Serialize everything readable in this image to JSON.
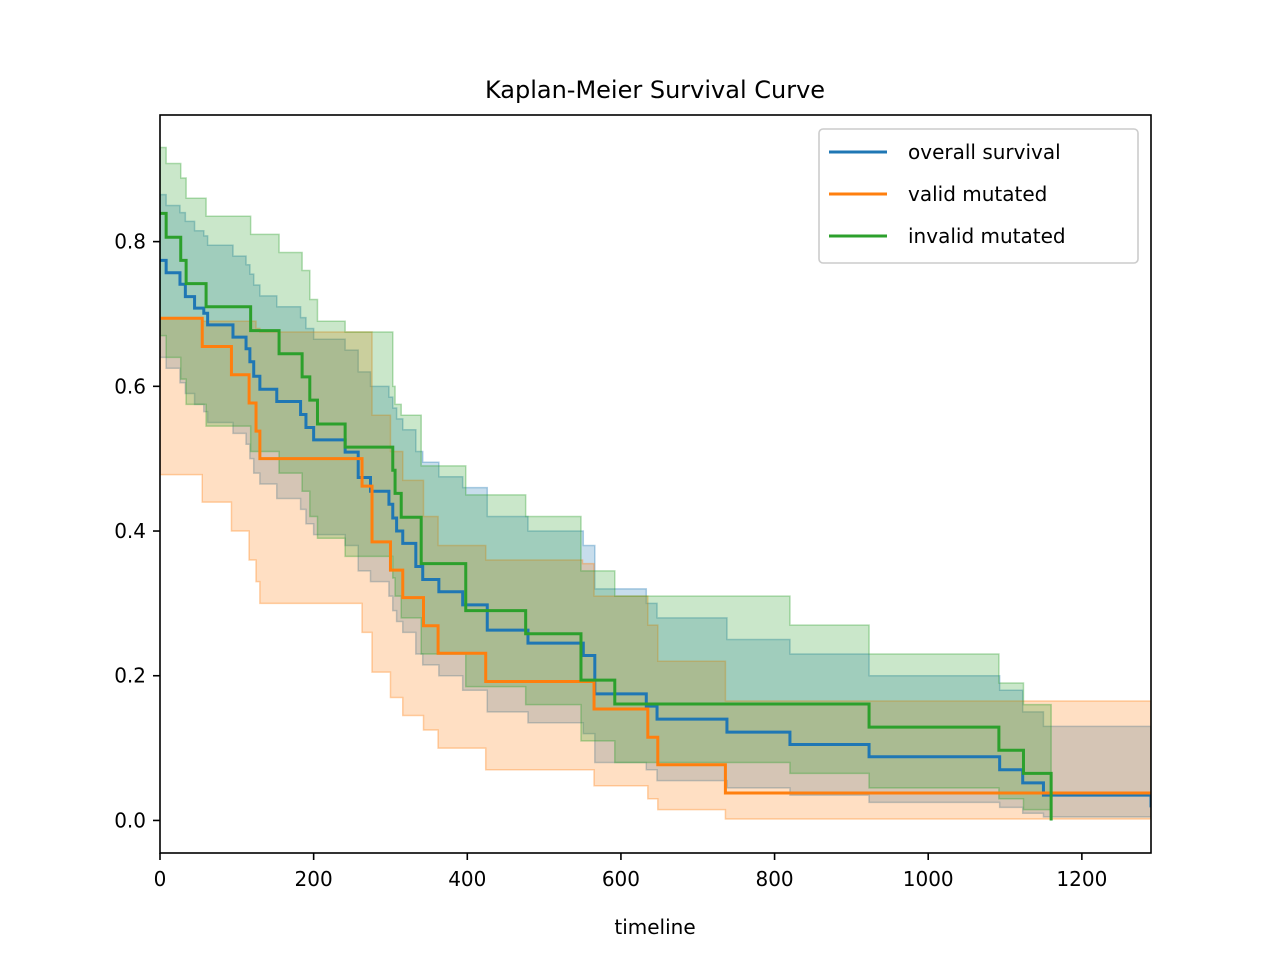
{
  "chart_data": {
    "type": "line",
    "title": "Kaplan-Meier Survival Curve",
    "xlabel": "timeline",
    "ylabel": "",
    "xlim": [
      0,
      1290
    ],
    "ylim": [
      -0.045,
      0.975
    ],
    "x_ticks": [
      0,
      200,
      400,
      600,
      800,
      1000,
      1200
    ],
    "y_ticks": [
      0.0,
      0.2,
      0.4,
      0.6,
      0.8
    ],
    "x_tick_labels": [
      "0",
      "200",
      "400",
      "600",
      "800",
      "1000",
      "1200"
    ],
    "y_tick_labels": [
      "0.0",
      "0.2",
      "0.4",
      "0.6",
      "0.8"
    ],
    "grid": false,
    "legend_position": "top-right",
    "series": [
      {
        "name": "overall survival",
        "color": "#1f77b4",
        "x": [
          0,
          8,
          26,
          33,
          45,
          57,
          62,
          95,
          112,
          117,
          122,
          130,
          152,
          183,
          190,
          200,
          241,
          258,
          274,
          298,
          303,
          308,
          316,
          333,
          342,
          363,
          394,
          426,
          479,
          551,
          566,
          633,
          647,
          738,
          820,
          923,
          1093,
          1123,
          1150,
          1290
        ],
        "y": [
          0.774,
          0.757,
          0.741,
          0.724,
          0.708,
          0.701,
          0.685,
          0.668,
          0.652,
          0.634,
          0.614,
          0.596,
          0.579,
          0.561,
          0.543,
          0.526,
          0.509,
          0.474,
          0.455,
          0.437,
          0.418,
          0.4,
          0.383,
          0.351,
          0.333,
          0.316,
          0.298,
          0.263,
          0.245,
          0.228,
          0.175,
          0.158,
          0.14,
          0.122,
          0.105,
          0.088,
          0.07,
          0.052,
          0.035,
          0.018
        ],
        "ci_upper": [
          0.865,
          0.85,
          0.84,
          0.828,
          0.815,
          0.808,
          0.795,
          0.78,
          0.768,
          0.755,
          0.74,
          0.725,
          0.71,
          0.695,
          0.68,
          0.665,
          0.65,
          0.62,
          0.6,
          0.585,
          0.57,
          0.555,
          0.54,
          0.51,
          0.495,
          0.475,
          0.46,
          0.42,
          0.4,
          0.38,
          0.32,
          0.3,
          0.28,
          0.25,
          0.23,
          0.2,
          0.18,
          0.15,
          0.13,
          0.08
        ],
        "ci_lower": [
          0.64,
          0.625,
          0.605,
          0.59,
          0.575,
          0.565,
          0.55,
          0.535,
          0.52,
          0.5,
          0.48,
          0.465,
          0.445,
          0.43,
          0.41,
          0.395,
          0.38,
          0.345,
          0.33,
          0.31,
          0.29,
          0.275,
          0.26,
          0.23,
          0.215,
          0.2,
          0.18,
          0.15,
          0.135,
          0.12,
          0.08,
          0.07,
          0.055,
          0.045,
          0.035,
          0.025,
          0.018,
          0.01,
          0.005,
          0.002
        ]
      },
      {
        "name": "valid mutated",
        "color": "#ff7f0e",
        "x": [
          0,
          55,
          93,
          116,
          125,
          130,
          263,
          276,
          300,
          316,
          343,
          362,
          424,
          550,
          565,
          635,
          648,
          736,
          1290
        ],
        "y": [
          0.694,
          0.655,
          0.616,
          0.577,
          0.538,
          0.5,
          0.462,
          0.385,
          0.346,
          0.308,
          0.269,
          0.231,
          0.192,
          0.192,
          0.154,
          0.115,
          0.077,
          0.038,
          0.038
        ],
        "ci_upper": [
          0.694,
          0.69,
          0.69,
          0.69,
          0.68,
          0.675,
          0.675,
          0.56,
          0.51,
          0.47,
          0.42,
          0.38,
          0.36,
          0.355,
          0.31,
          0.27,
          0.22,
          0.165,
          0.165
        ],
        "ci_lower": [
          0.478,
          0.44,
          0.4,
          0.36,
          0.33,
          0.3,
          0.26,
          0.205,
          0.17,
          0.145,
          0.125,
          0.1,
          0.07,
          0.07,
          0.048,
          0.03,
          0.015,
          0.002,
          0.0
        ]
      },
      {
        "name": "invalid mutated",
        "color": "#2ca02c",
        "x": [
          0,
          8,
          27,
          34,
          60,
          118,
          155,
          185,
          195,
          205,
          241,
          303,
          306,
          314,
          340,
          398,
          476,
          548,
          592,
          820,
          923,
          1092,
          1124,
          1160
        ],
        "y": [
          0.839,
          0.806,
          0.774,
          0.742,
          0.71,
          0.677,
          0.645,
          0.613,
          0.581,
          0.548,
          0.516,
          0.484,
          0.452,
          0.419,
          0.355,
          0.29,
          0.258,
          0.194,
          0.161,
          0.161,
          0.129,
          0.097,
          0.065,
          0.032
        ],
        "ci_upper": [
          0.93,
          0.908,
          0.888,
          0.86,
          0.835,
          0.81,
          0.785,
          0.76,
          0.72,
          0.69,
          0.675,
          0.6,
          0.575,
          0.56,
          0.49,
          0.45,
          0.42,
          0.345,
          0.31,
          0.27,
          0.23,
          0.19,
          0.16,
          0.12
        ],
        "ci_lower": [
          0.67,
          0.64,
          0.61,
          0.575,
          0.545,
          0.51,
          0.48,
          0.455,
          0.42,
          0.39,
          0.365,
          0.335,
          0.31,
          0.28,
          0.23,
          0.185,
          0.16,
          0.11,
          0.08,
          0.065,
          0.045,
          0.03,
          0.015,
          0.0
        ]
      }
    ]
  }
}
